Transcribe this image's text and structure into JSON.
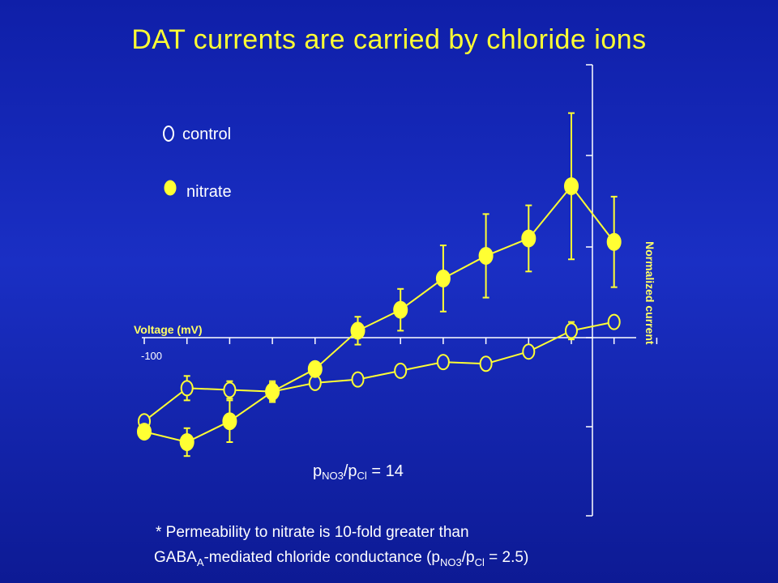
{
  "title": "DAT currents are carried by chloride ions",
  "legend": {
    "control_label": "control",
    "nitrate_label": "nitrate"
  },
  "ratio_note": {
    "p": "p",
    "sub1": "NO3",
    "slash": "/p",
    "sub2": "Cl",
    "rest": " = 14"
  },
  "footnote": {
    "line1": "* Permeability to nitrate is 10-fold greater than",
    "line2_a": "GABA",
    "line2_sub1": "A",
    "line2_b": "-mediated chloride conductance (p",
    "line2_sub2": "NO3",
    "line2_c": "/p",
    "line2_sub3": "Cl",
    "line2_d": " = 2.5)"
  },
  "colors": {
    "accent": "#ffff33",
    "background": "#1326b8",
    "text": "#ffffff"
  },
  "chart_data": {
    "type": "line",
    "xlabel": "Voltage (mV)",
    "ylabel": "Normalized current",
    "x_tick_label_value": -100,
    "x_tick_label": "-100",
    "xlim": [
      -110,
      10
    ],
    "ylim": [
      -1.0,
      1.5
    ],
    "x": [
      -110,
      -100,
      -90,
      -80,
      -70,
      -60,
      -50,
      -40,
      -30,
      -20,
      -10,
      0,
      10
    ],
    "series": [
      {
        "name": "control",
        "marker": "open-circle",
        "values": [
          -0.48,
          -0.29,
          -0.3,
          -0.31,
          -0.26,
          -0.24,
          -0.19,
          -0.14,
          -0.15,
          -0.08,
          0.04,
          0.09,
          null
        ],
        "errors": [
          0,
          0.07,
          0.05,
          0.05,
          0.0,
          0.0,
          0.0,
          0.0,
          0.0,
          0.0,
          0.05,
          0.0,
          null
        ]
      },
      {
        "name": "nitrate",
        "marker": "filled-circle",
        "values": [
          -0.54,
          -0.6,
          -0.48,
          -0.31,
          -0.18,
          0.04,
          0.16,
          0.34,
          0.47,
          0.57,
          0.87,
          0.55,
          null
        ],
        "errors": [
          0,
          0.08,
          0.12,
          0.06,
          0.0,
          0.08,
          0.12,
          0.19,
          0.24,
          0.19,
          0.42,
          0.26,
          null
        ]
      }
    ]
  }
}
